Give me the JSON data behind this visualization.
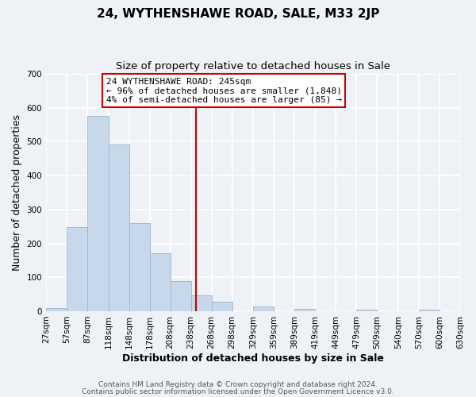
{
  "title": "24, WYTHENSHAWE ROAD, SALE, M33 2JP",
  "subtitle": "Size of property relative to detached houses in Sale",
  "xlabel": "Distribution of detached houses by size in Sale",
  "ylabel": "Number of detached properties",
  "bar_color": "#c8d8eb",
  "bar_edge_color": "#9ab4cc",
  "vline_x": 245,
  "vline_color": "#cc0000",
  "annotation_title": "24 WYTHENSHAWE ROAD: 245sqm",
  "annotation_line1": "← 96% of detached houses are smaller (1,848)",
  "annotation_line2": "4% of semi-detached houses are larger (85) →",
  "annotation_box_color": "#ffffff",
  "annotation_box_edge": "#cc0000",
  "bin_edges": [
    27,
    57,
    87,
    118,
    148,
    178,
    208,
    238,
    268,
    298,
    329,
    359,
    389,
    419,
    449,
    479,
    509,
    540,
    570,
    600,
    630
  ],
  "bar_heights": [
    10,
    247,
    575,
    491,
    260,
    170,
    88,
    47,
    28,
    0,
    14,
    0,
    7,
    0,
    0,
    5,
    0,
    0,
    5,
    0
  ],
  "ylim": [
    0,
    700
  ],
  "yticks": [
    0,
    100,
    200,
    300,
    400,
    500,
    600,
    700
  ],
  "footer_line1": "Contains HM Land Registry data © Crown copyright and database right 2024.",
  "footer_line2": "Contains public sector information licensed under the Open Government Licence v3.0.",
  "background_color": "#eef2f7",
  "plot_bg_color": "#eef2f7",
  "grid_color": "#ffffff",
  "title_fontsize": 11,
  "subtitle_fontsize": 9.5,
  "axis_label_fontsize": 9,
  "tick_fontsize": 7.5,
  "footer_fontsize": 6.5,
  "annotation_fontsize": 8
}
